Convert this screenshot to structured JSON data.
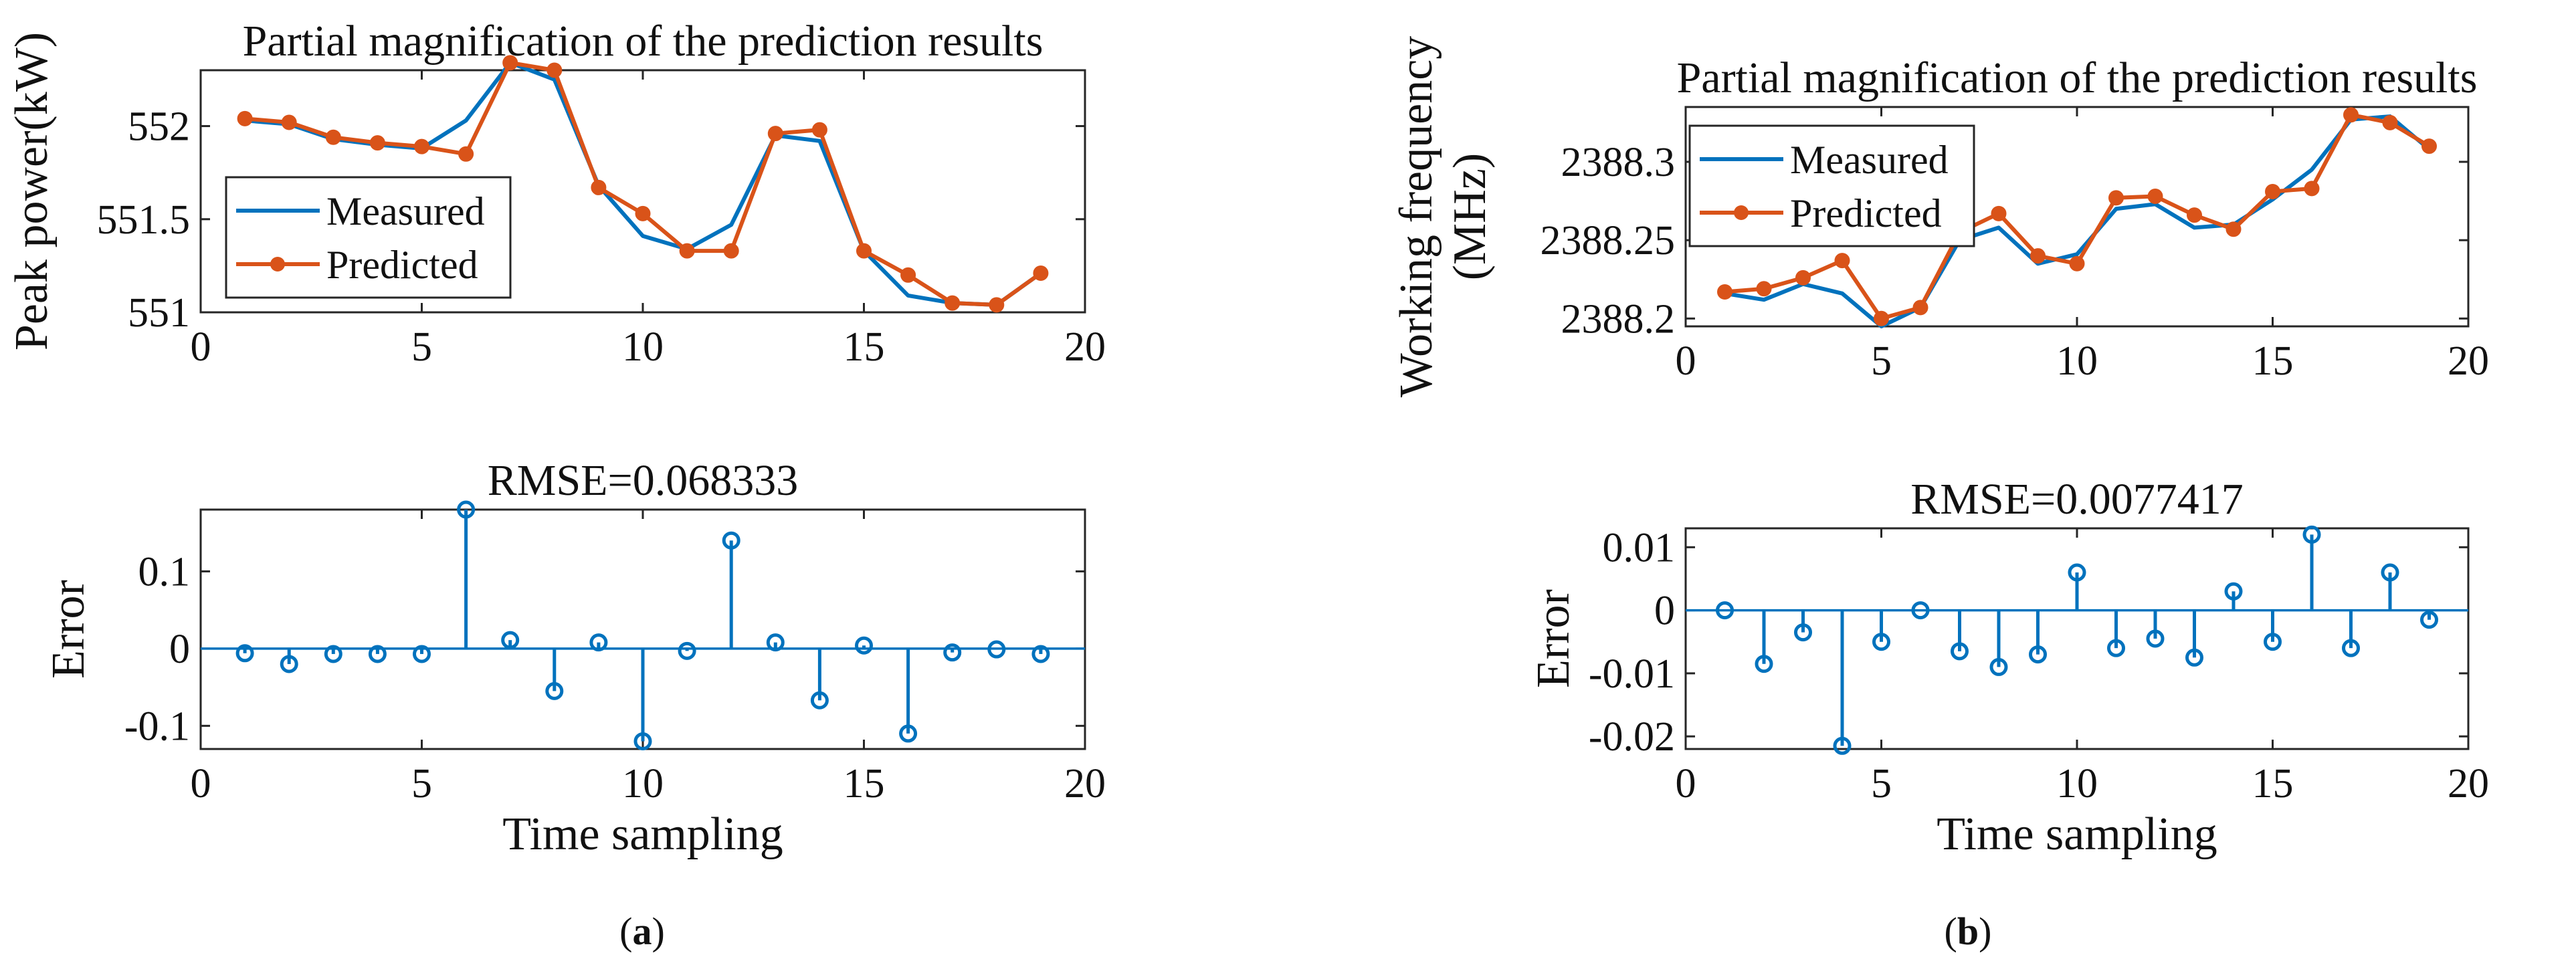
{
  "colors": {
    "measured": "#0072BD",
    "predicted": "#D95319",
    "axis": "#262626",
    "background": "#ffffff"
  },
  "panels": [
    {
      "tag": "(a)",
      "tag_letter": "a"
    },
    {
      "tag": "(b)",
      "tag_letter": "b"
    }
  ],
  "chart_data": [
    {
      "type": "line",
      "title": "Partial magnification of the prediction results",
      "xlabel": "",
      "ylabel": "Peak power(kW)",
      "xlim": [
        0,
        20
      ],
      "ylim": [
        551,
        552.3
      ],
      "xticks": [
        0,
        5,
        10,
        15,
        20
      ],
      "xtick_labels": [
        "0",
        "5",
        "10",
        "15",
        "20"
      ],
      "yticks": [
        551,
        551.5,
        552
      ],
      "ytick_labels": [
        "551",
        "551.5",
        "552"
      ],
      "grid": false,
      "legend": "bottom-left",
      "x": [
        1,
        2,
        3,
        4,
        5,
        6,
        7,
        8,
        9,
        10,
        11,
        12,
        13,
        14,
        15,
        16,
        17,
        18,
        19
      ],
      "series": [
        {
          "name": "Measured",
          "color": "#0072BD",
          "marker": false,
          "values": [
            552.03,
            552.01,
            551.93,
            551.9,
            551.88,
            552.03,
            552.34,
            552.25,
            551.68,
            551.41,
            551.34,
            551.47,
            551.95,
            551.92,
            551.33,
            551.09,
            551.05,
            551.04,
            551.21
          ]
        },
        {
          "name": "Predicted",
          "color": "#D95319",
          "marker": true,
          "values": [
            552.04,
            552.02,
            551.94,
            551.91,
            551.89,
            551.85,
            552.34,
            552.3,
            551.67,
            551.53,
            551.33,
            551.33,
            551.96,
            551.98,
            551.33,
            551.2,
            551.05,
            551.04,
            551.21
          ]
        }
      ]
    },
    {
      "type": "stem",
      "title": "RMSE=0.068333",
      "xlabel": "Time sampling",
      "ylabel": "Error",
      "xlim": [
        0,
        20
      ],
      "ylim": [
        -0.13,
        0.18
      ],
      "xticks": [
        0,
        5,
        10,
        15,
        20
      ],
      "xtick_labels": [
        "0",
        "5",
        "10",
        "15",
        "20"
      ],
      "yticks": [
        -0.1,
        0,
        0.1
      ],
      "ytick_labels": [
        "-0.1",
        "0",
        "0.1"
      ],
      "grid": false,
      "x": [
        1,
        2,
        3,
        4,
        5,
        6,
        7,
        8,
        9,
        10,
        11,
        12,
        13,
        14,
        15,
        16,
        17,
        18,
        19
      ],
      "series": [
        {
          "name": "",
          "color": "#0072BD",
          "values": [
            -0.006,
            -0.02,
            -0.007,
            -0.007,
            -0.007,
            0.18,
            0.011,
            -0.055,
            0.008,
            -0.12,
            -0.003,
            0.14,
            0.008,
            -0.067,
            0.004,
            -0.11,
            -0.005,
            -0.001,
            -0.007
          ]
        }
      ]
    },
    {
      "type": "line",
      "title": "Partial magnification of the prediction results",
      "xlabel": "",
      "ylabel": "Working frequency (MHz)",
      "ylabel_lines": [
        "Working frequency",
        "(MHz)"
      ],
      "xlim": [
        0,
        20
      ],
      "ylim": [
        2388.195,
        2388.335
      ],
      "xticks": [
        0,
        5,
        10,
        15,
        20
      ],
      "xtick_labels": [
        "0",
        "5",
        "10",
        "15",
        "20"
      ],
      "yticks": [
        2388.2,
        2388.25,
        2388.3
      ],
      "ytick_labels": [
        "2388.2",
        "2388.25",
        "2388.3"
      ],
      "grid": false,
      "legend": "top-left",
      "x": [
        1,
        2,
        3,
        4,
        5,
        6,
        7,
        8,
        9,
        10,
        11,
        12,
        13,
        14,
        15,
        16,
        17,
        18,
        19
      ],
      "series": [
        {
          "name": "Measured",
          "color": "#0072BD",
          "marker": false,
          "values": [
            2388.216,
            2388.212,
            2388.222,
            2388.216,
            2388.195,
            2388.207,
            2388.25,
            2388.258,
            2388.235,
            2388.241,
            2388.27,
            2388.273,
            2388.258,
            2388.26,
            2388.276,
            2388.295,
            2388.327,
            2388.329,
            2388.308
          ]
        },
        {
          "name": "Predicted",
          "color": "#D95319",
          "marker": true,
          "values": [
            2388.217,
            2388.219,
            2388.226,
            2388.237,
            2388.2,
            2388.207,
            2388.255,
            2388.267,
            2388.24,
            2388.235,
            2388.277,
            2388.278,
            2388.266,
            2388.257,
            2388.281,
            2388.283,
            2388.33,
            2388.325,
            2388.31
          ]
        }
      ]
    },
    {
      "type": "stem",
      "title": "RMSE=0.0077417",
      "xlabel": "Time sampling",
      "ylabel": "Error",
      "xlim": [
        0,
        20
      ],
      "ylim": [
        -0.022,
        0.013
      ],
      "xticks": [
        0,
        5,
        10,
        15,
        20
      ],
      "xtick_labels": [
        "0",
        "5",
        "10",
        "15",
        "20"
      ],
      "yticks": [
        -0.02,
        -0.01,
        0,
        0.01
      ],
      "ytick_labels": [
        "-0.02",
        "-0.01",
        "0",
        "0.01"
      ],
      "grid": false,
      "x": [
        1,
        2,
        3,
        4,
        5,
        6,
        7,
        8,
        9,
        10,
        11,
        12,
        13,
        14,
        15,
        16,
        17,
        18,
        19
      ],
      "series": [
        {
          "name": "",
          "color": "#0072BD",
          "values": [
            0,
            -0.0085,
            -0.0035,
            -0.0215,
            -0.005,
            0,
            -0.0065,
            -0.009,
            -0.007,
            0.006,
            -0.006,
            -0.0045,
            -0.0075,
            0.003,
            -0.005,
            0.012,
            -0.006,
            0.006,
            -0.0015
          ]
        }
      ]
    }
  ]
}
